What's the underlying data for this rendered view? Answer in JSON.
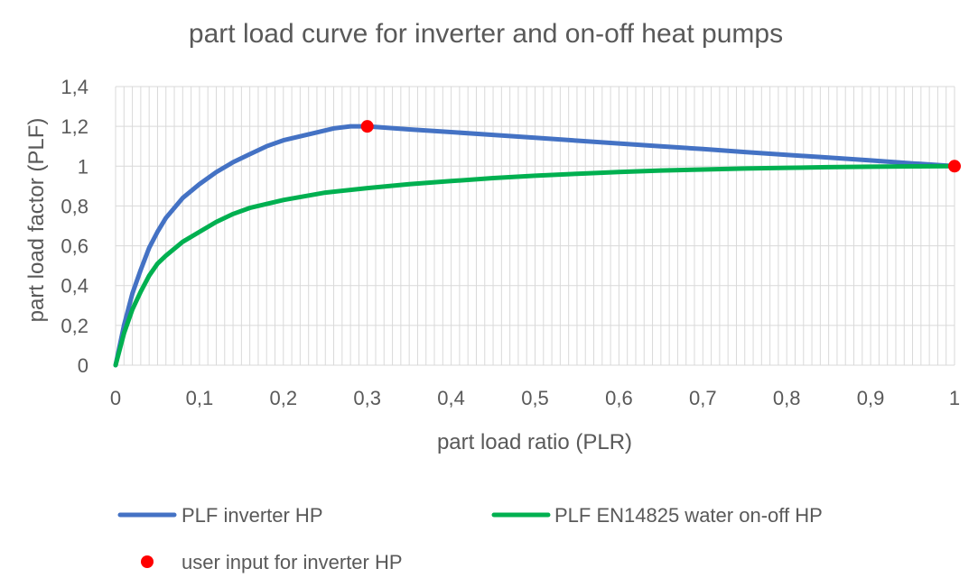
{
  "chart_data": {
    "type": "line",
    "title": "part load curve for inverter and on-off heat pumps",
    "xlabel": "part load ratio (PLR)",
    "ylabel": "part load factor (PLF)",
    "xlim": [
      0,
      1
    ],
    "ylim": [
      0,
      1.4
    ],
    "x_ticks": [
      "0",
      "0,1",
      "0,2",
      "0,3",
      "0,4",
      "0,5",
      "0,6",
      "0,7",
      "0,8",
      "0,9",
      "1"
    ],
    "y_ticks": [
      "0",
      "0,2",
      "0,4",
      "0,6",
      "0,8",
      "1",
      "1,2",
      "1,4"
    ],
    "grid": true,
    "legend_position": "bottom",
    "series": [
      {
        "name": "PLF inverter HP",
        "color": "#4472c4",
        "style": "line",
        "x": [
          0,
          0.01,
          0.02,
          0.03,
          0.04,
          0.05,
          0.06,
          0.08,
          0.1,
          0.12,
          0.14,
          0.16,
          0.18,
          0.2,
          0.22,
          0.24,
          0.26,
          0.28,
          0.3,
          0.35,
          0.4,
          0.45,
          0.5,
          0.55,
          0.6,
          0.65,
          0.7,
          0.75,
          0.8,
          0.85,
          0.9,
          0.95,
          1.0
        ],
        "y": [
          0,
          0.2,
          0.36,
          0.48,
          0.59,
          0.67,
          0.74,
          0.84,
          0.91,
          0.97,
          1.02,
          1.06,
          1.1,
          1.13,
          1.15,
          1.17,
          1.19,
          1.2,
          1.2,
          1.185,
          1.171,
          1.157,
          1.143,
          1.128,
          1.114,
          1.1,
          1.086,
          1.071,
          1.057,
          1.043,
          1.029,
          1.014,
          1.0
        ]
      },
      {
        "name": "PLF EN14825 water on-off HP",
        "color": "#00b050",
        "style": "line",
        "x": [
          0,
          0.01,
          0.02,
          0.03,
          0.04,
          0.05,
          0.06,
          0.08,
          0.1,
          0.12,
          0.14,
          0.16,
          0.18,
          0.2,
          0.25,
          0.3,
          0.35,
          0.4,
          0.45,
          0.5,
          0.55,
          0.6,
          0.65,
          0.7,
          0.75,
          0.8,
          0.85,
          0.9,
          0.95,
          1.0
        ],
        "y": [
          0,
          0.16,
          0.28,
          0.37,
          0.45,
          0.51,
          0.55,
          0.62,
          0.67,
          0.72,
          0.76,
          0.79,
          0.81,
          0.83,
          0.867,
          0.89,
          0.91,
          0.925,
          0.94,
          0.952,
          0.962,
          0.971,
          0.978,
          0.983,
          0.988,
          0.992,
          0.995,
          0.997,
          0.999,
          1.0
        ]
      },
      {
        "name": "user input for inverter HP",
        "color": "#ff0000",
        "style": "points",
        "x": [
          0.3,
          1.0
        ],
        "y": [
          1.2,
          1.0
        ]
      }
    ]
  }
}
